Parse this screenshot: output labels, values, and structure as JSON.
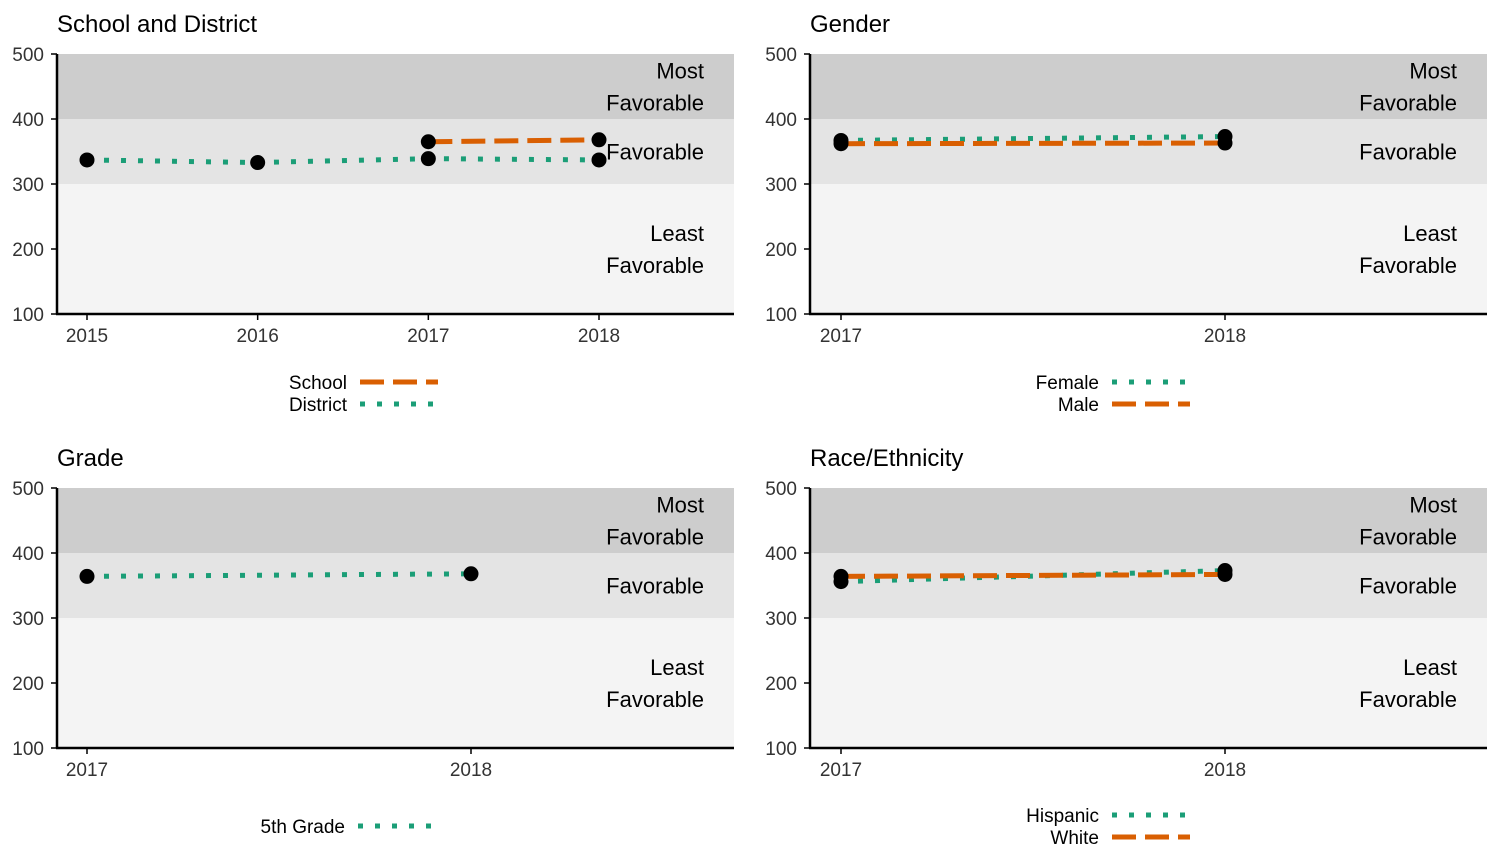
{
  "bands": [
    {
      "label_lines": [
        "Least",
        "Favorable"
      ],
      "from": 100,
      "to": 300,
      "color": "#f4f4f4"
    },
    {
      "label_lines": [
        "Favorable"
      ],
      "from": 300,
      "to": 400,
      "color": "#e4e4e4"
    },
    {
      "label_lines": [
        "Most",
        "Favorable"
      ],
      "from": 400,
      "to": 500,
      "color": "#cdcdcd"
    }
  ],
  "colors": {
    "orange": "#d95f02",
    "green": "#1b9e77",
    "point": "#000000"
  },
  "chart_data": [
    {
      "type": "line",
      "title": "School and District",
      "x": [
        "2015",
        "2016",
        "2017",
        "2018"
      ],
      "ylim": [
        100,
        500
      ],
      "yticks": [
        100,
        200,
        300,
        400,
        500
      ],
      "series": [
        {
          "name": "School",
          "style": "dashed",
          "color": "#d95f02",
          "values": [
            null,
            null,
            365,
            368
          ]
        },
        {
          "name": "District",
          "style": "dotted",
          "color": "#1b9e77",
          "values": [
            337,
            333,
            339,
            337
          ]
        }
      ]
    },
    {
      "type": "line",
      "title": "Gender",
      "x": [
        "2017",
        "2018"
      ],
      "ylim": [
        100,
        500
      ],
      "yticks": [
        100,
        200,
        300,
        400,
        500
      ],
      "series": [
        {
          "name": "Female",
          "style": "dotted",
          "color": "#1b9e77",
          "values": [
            367,
            373
          ]
        },
        {
          "name": "Male",
          "style": "dashed",
          "color": "#d95f02",
          "values": [
            362,
            363
          ]
        }
      ]
    },
    {
      "type": "line",
      "title": "Grade",
      "x": [
        "2017",
        "2018"
      ],
      "ylim": [
        100,
        500
      ],
      "yticks": [
        100,
        200,
        300,
        400,
        500
      ],
      "series": [
        {
          "name": "5th Grade",
          "style": "dotted",
          "color": "#1b9e77",
          "values": [
            364,
            368
          ]
        }
      ]
    },
    {
      "type": "line",
      "title": "Race/Ethnicity",
      "x": [
        "2017",
        "2018"
      ],
      "ylim": [
        100,
        500
      ],
      "yticks": [
        100,
        200,
        300,
        400,
        500
      ],
      "series": [
        {
          "name": "Hispanic",
          "style": "dotted",
          "color": "#1b9e77",
          "values": [
            356,
            373
          ]
        },
        {
          "name": "White",
          "style": "dashed",
          "color": "#d95f02",
          "values": [
            364,
            367
          ]
        }
      ]
    }
  ]
}
